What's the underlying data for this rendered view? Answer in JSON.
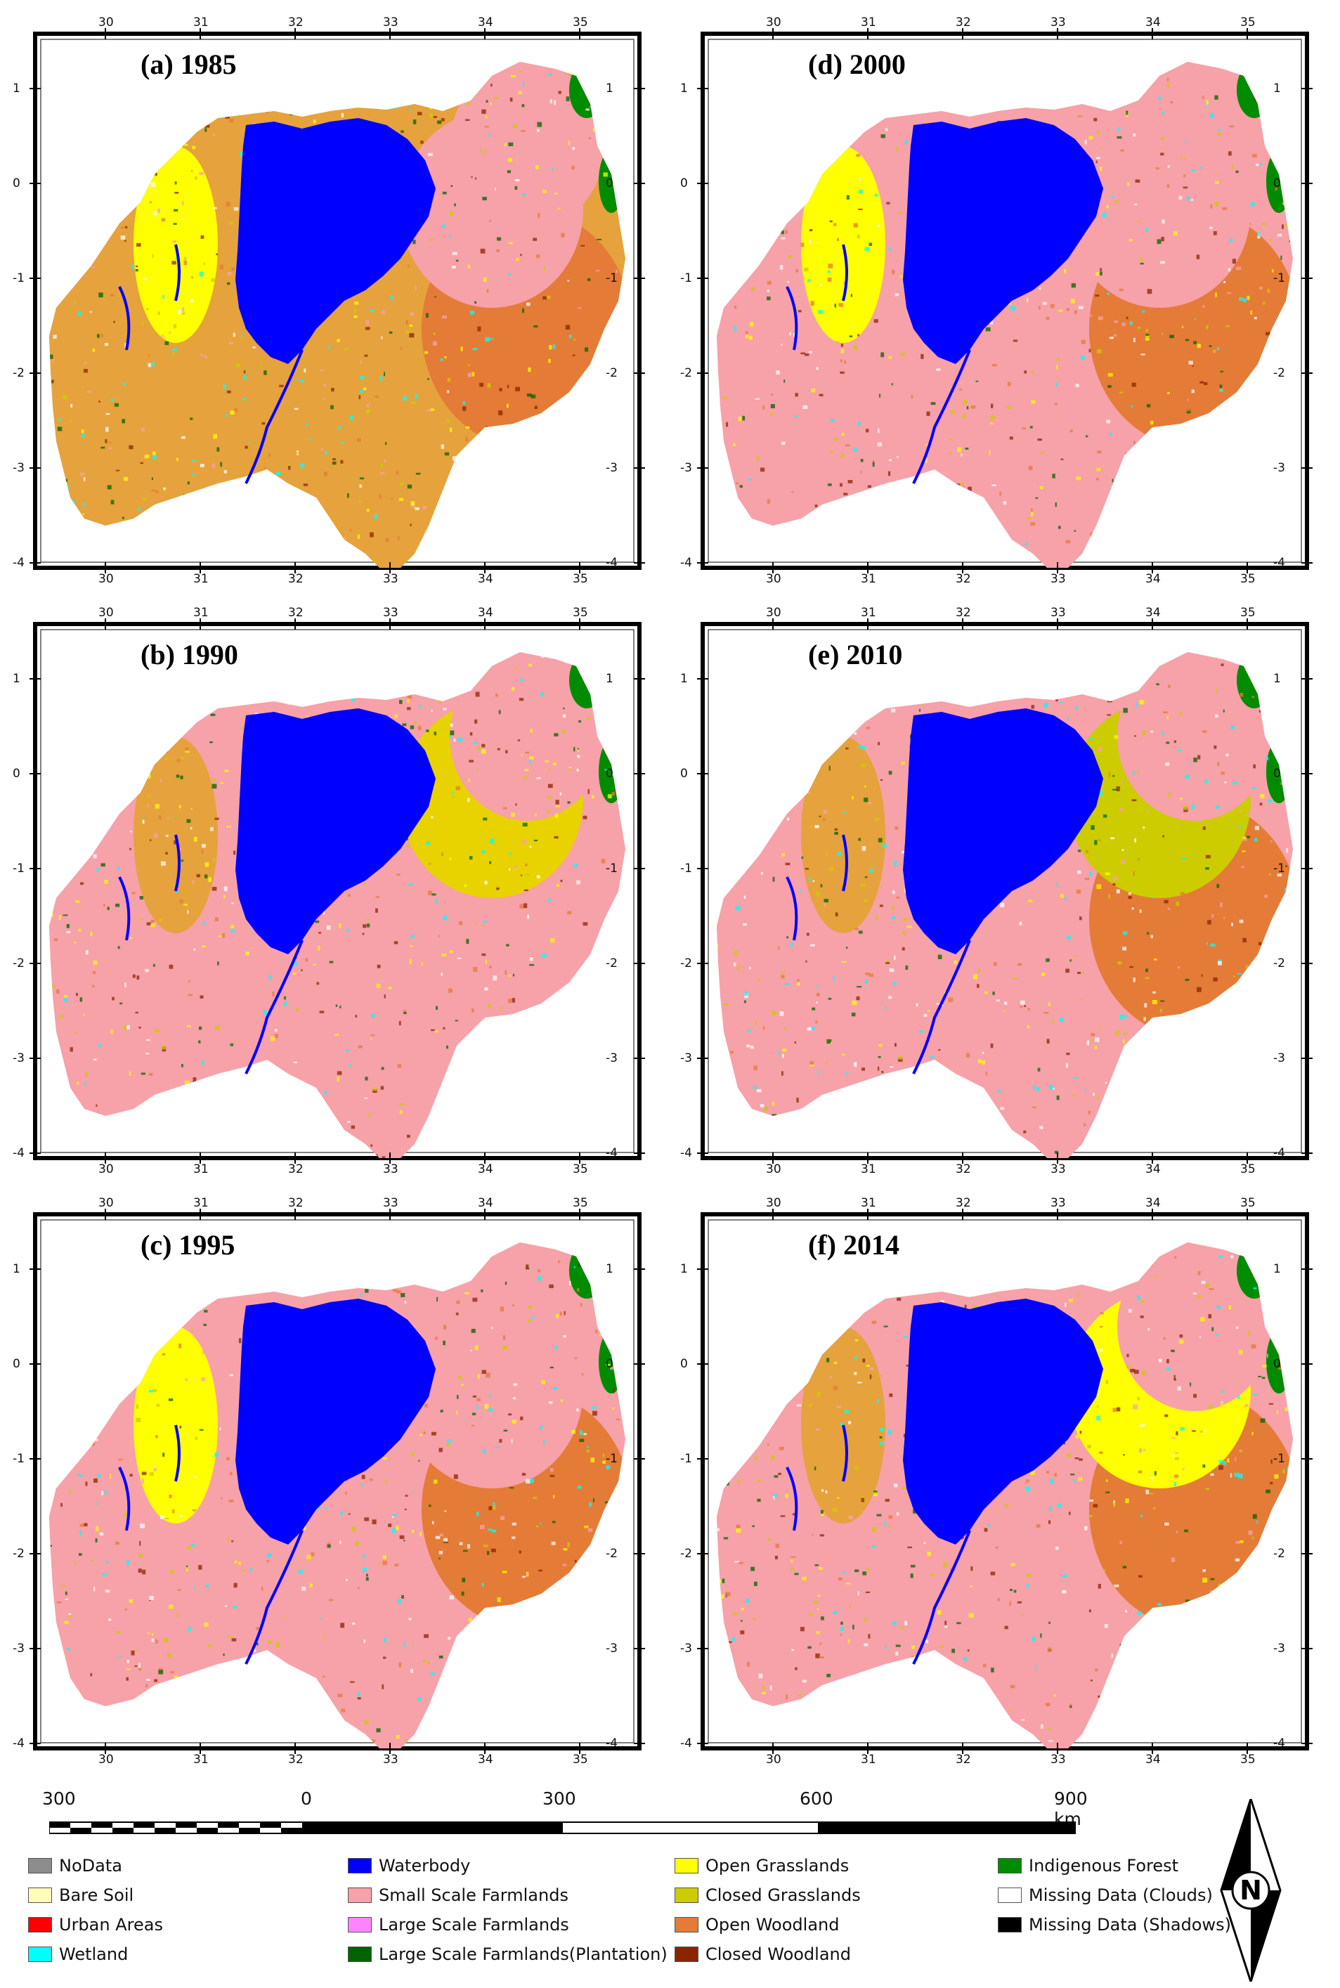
{
  "panels": [
    {
      "title": "(a) 1985",
      "variant": 0
    },
    {
      "title": "(d) 2000",
      "variant": 3
    },
    {
      "title": "(b) 1990",
      "variant": 1
    },
    {
      "title": "(e) 2010",
      "variant": 4
    },
    {
      "title": "(c) 1995",
      "variant": 2
    },
    {
      "title": "(f) 2014",
      "variant": 5
    }
  ],
  "lon_ticks": [
    "30",
    "31",
    "32",
    "33",
    "34",
    "35"
  ],
  "lat_ticks": [
    "1",
    "0",
    "-1",
    "-2",
    "-3",
    "-4"
  ],
  "scalebar": {
    "labels": [
      "300",
      "0",
      "300",
      "600",
      "900 km"
    ]
  },
  "legend": [
    {
      "label": "NoData",
      "color": "#8c8c8c"
    },
    {
      "label": "Bare Soil",
      "color": "#fdfdb8"
    },
    {
      "label": "Urban Areas",
      "color": "#ff0000"
    },
    {
      "label": "Wetland",
      "color": "#00ffff"
    },
    {
      "label": "Waterbody",
      "color": "#0000ff"
    },
    {
      "label": "Small Scale Farmlands",
      "color": "#f7a1a9"
    },
    {
      "label": "Large Scale Farmlands",
      "color": "#ff85ff"
    },
    {
      "label": "Large Scale Farmlands(Plantation)",
      "color": "#006400"
    },
    {
      "label": "Open Grasslands",
      "color": "#ffff00"
    },
    {
      "label": "Closed Grasslands",
      "color": "#cccc00"
    },
    {
      "label": "Open Woodland",
      "color": "#e47b37"
    },
    {
      "label": "Closed Woodland",
      "color": "#8b2500"
    },
    {
      "label": "Indigenous Forest",
      "color": "#008c00"
    },
    {
      "label": "Missing Data (Clouds)",
      "color": "#ffffff"
    },
    {
      "label": "Missing Data (Shadows)",
      "color": "#000000"
    }
  ],
  "north_arrow": {
    "label": "N",
    "icon": "north-arrow-icon"
  }
}
